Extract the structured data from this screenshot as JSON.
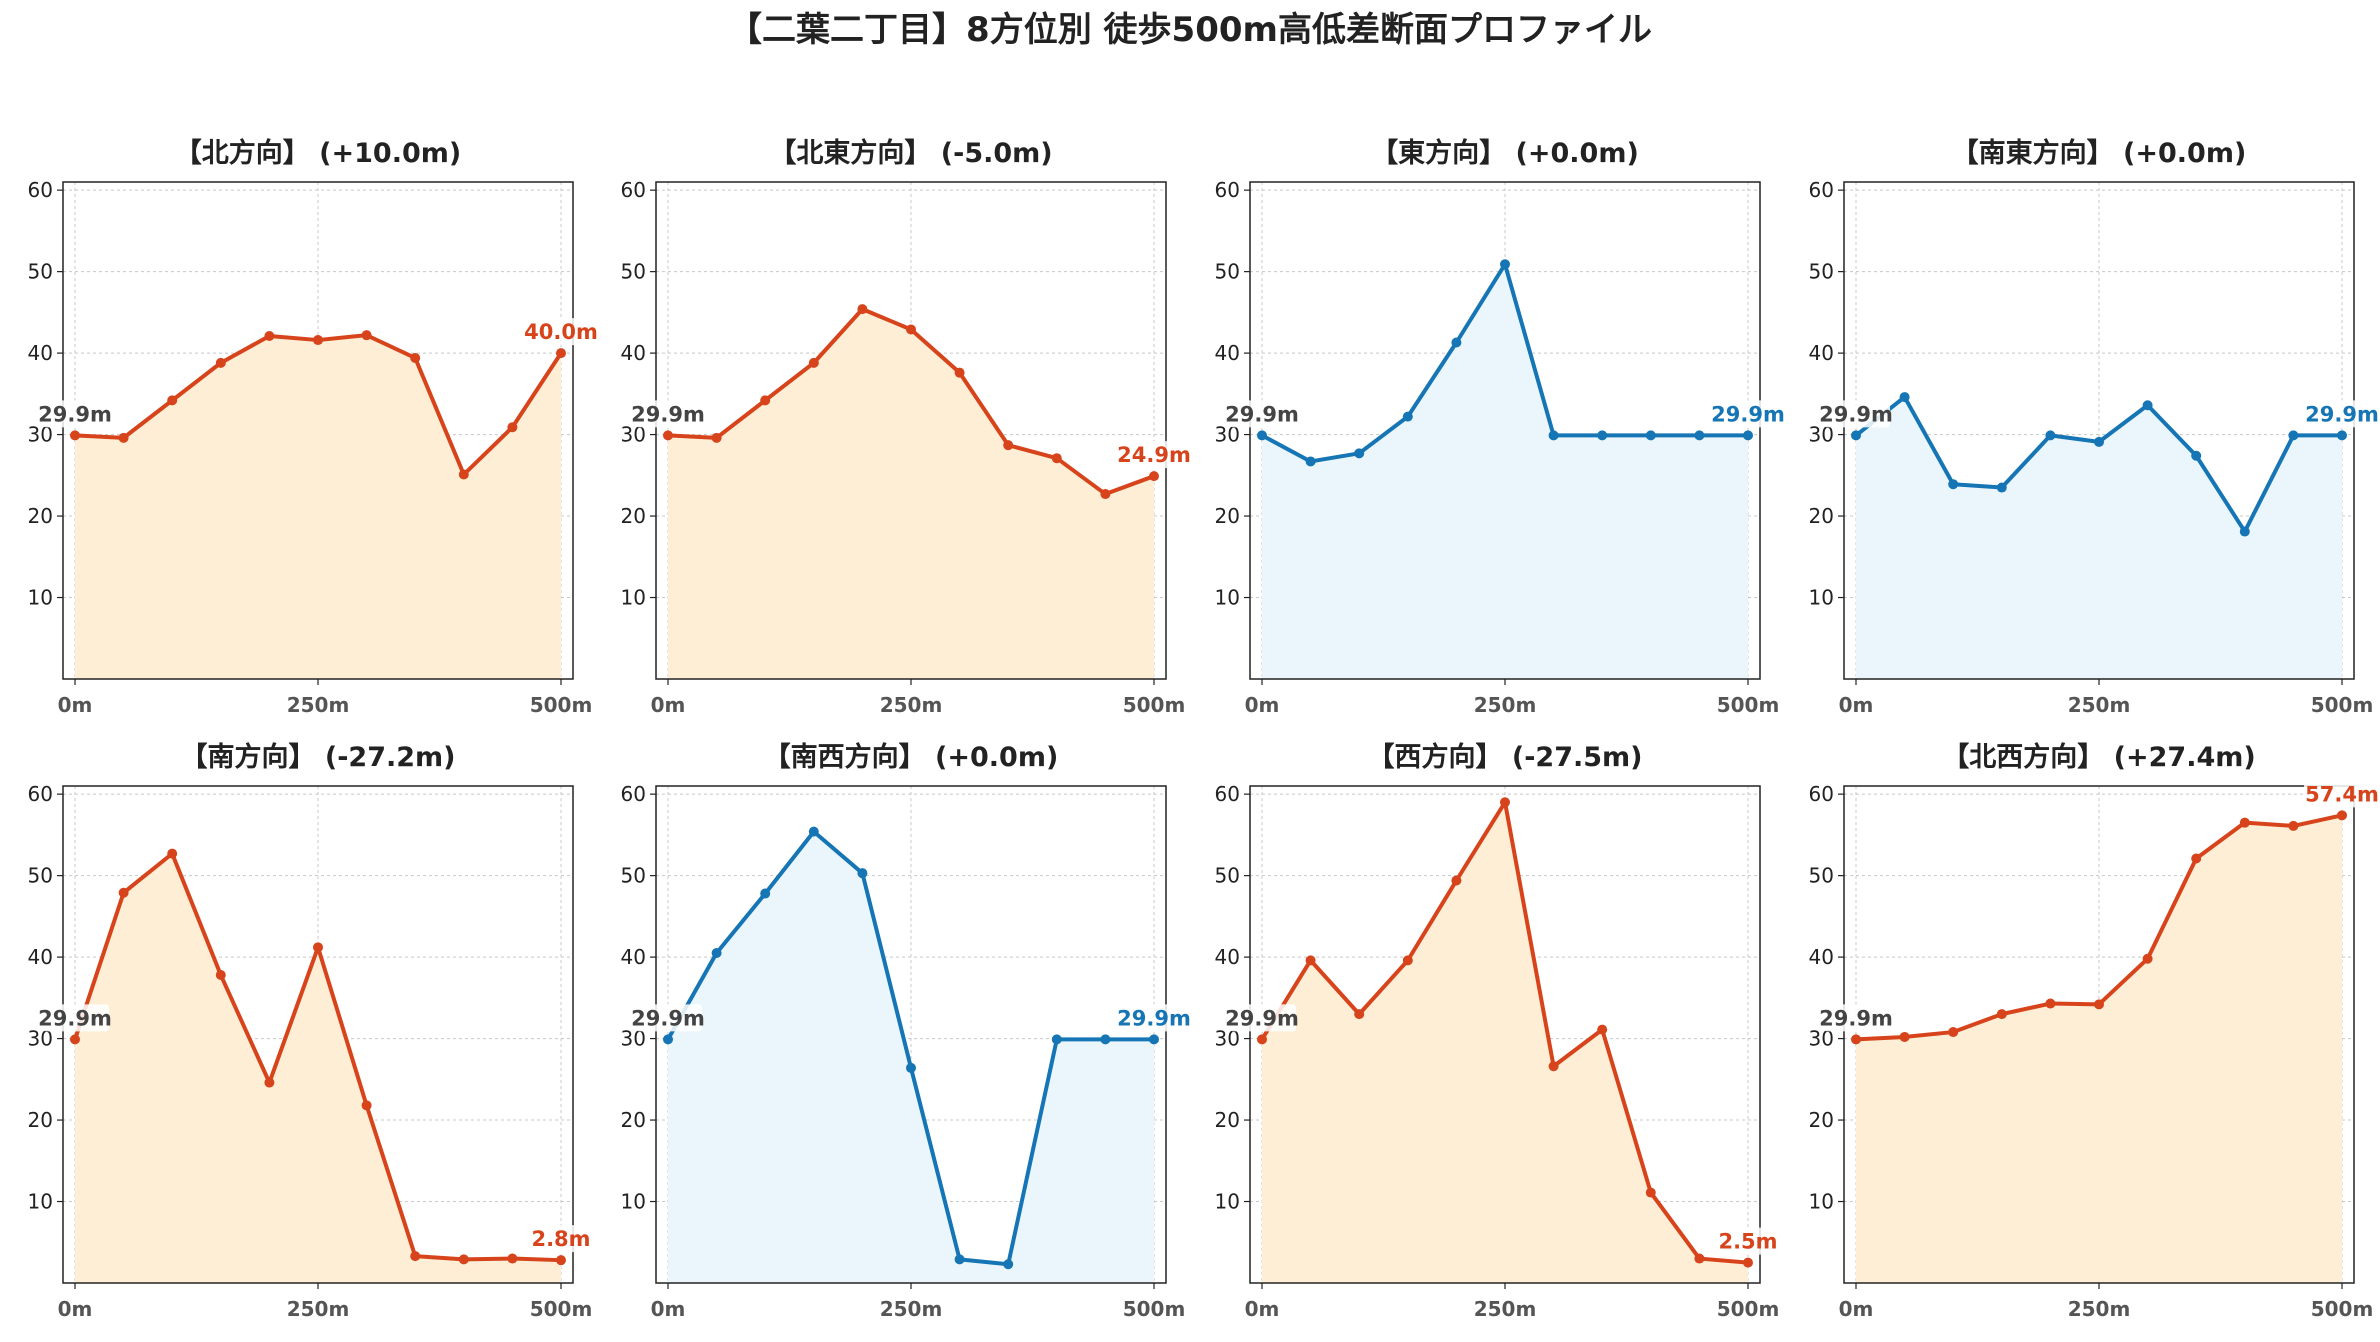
{
  "title": "【二葉二丁目】8方位別 徒歩500m高低差断面プロファイル",
  "colors": {
    "up_line": "#d7441c",
    "up_fill": "#fdeed5",
    "flat_line": "#1575b5",
    "flat_fill": "#eaf6fc",
    "start_label": "#444444"
  },
  "chart_data": [
    {
      "type": "line",
      "title": "【北方向】 (+10.0m)",
      "trend": "up",
      "x": [
        0,
        50,
        100,
        150,
        200,
        250,
        300,
        350,
        400,
        450,
        500
      ],
      "values": [
        29.9,
        29.6,
        34.2,
        38.8,
        42.1,
        41.6,
        42.2,
        39.4,
        25.1,
        30.9,
        40.0
      ],
      "xtick_labels": [
        "0m",
        "250m",
        "500m"
      ],
      "ytick_labels": [
        "10",
        "20",
        "30",
        "40",
        "50",
        "60"
      ],
      "ylim": [
        0,
        61
      ],
      "grid": true,
      "start_label": "29.9m",
      "end_label": "40.0m"
    },
    {
      "type": "line",
      "title": "【北東方向】 (-5.0m)",
      "trend": "up",
      "x": [
        0,
        50,
        100,
        150,
        200,
        250,
        300,
        350,
        400,
        450,
        500
      ],
      "values": [
        29.9,
        29.6,
        34.2,
        38.8,
        45.4,
        42.9,
        37.6,
        28.7,
        27.1,
        22.7,
        24.9
      ],
      "xtick_labels": [
        "0m",
        "250m",
        "500m"
      ],
      "ytick_labels": [
        "10",
        "20",
        "30",
        "40",
        "50",
        "60"
      ],
      "ylim": [
        0,
        61
      ],
      "grid": true,
      "start_label": "29.9m",
      "end_label": "24.9m"
    },
    {
      "type": "line",
      "title": "【東方向】 (+0.0m)",
      "trend": "flat",
      "x": [
        0,
        50,
        100,
        150,
        200,
        250,
        300,
        350,
        400,
        450,
        500
      ],
      "values": [
        29.9,
        26.7,
        27.7,
        32.2,
        41.3,
        50.9,
        29.9,
        29.9,
        29.9,
        29.9,
        29.9
      ],
      "xtick_labels": [
        "0m",
        "250m",
        "500m"
      ],
      "ytick_labels": [
        "10",
        "20",
        "30",
        "40",
        "50",
        "60"
      ],
      "ylim": [
        0,
        61
      ],
      "grid": true,
      "start_label": "29.9m",
      "end_label": "29.9m"
    },
    {
      "type": "line",
      "title": "【南東方向】 (+0.0m)",
      "trend": "flat",
      "x": [
        0,
        50,
        100,
        150,
        200,
        250,
        300,
        350,
        400,
        450,
        500
      ],
      "values": [
        29.9,
        34.6,
        23.9,
        23.5,
        29.9,
        29.1,
        33.6,
        27.4,
        18.1,
        29.9,
        29.9
      ],
      "xtick_labels": [
        "0m",
        "250m",
        "500m"
      ],
      "ytick_labels": [
        "10",
        "20",
        "30",
        "40",
        "50",
        "60"
      ],
      "ylim": [
        0,
        61
      ],
      "grid": true,
      "start_label": "29.9m",
      "end_label": "29.9m"
    },
    {
      "type": "line",
      "title": "【南方向】 (-27.2m)",
      "trend": "up",
      "x": [
        0,
        50,
        100,
        150,
        200,
        250,
        300,
        350,
        400,
        450,
        500
      ],
      "values": [
        29.9,
        47.9,
        52.7,
        37.8,
        24.6,
        41.2,
        21.8,
        3.3,
        2.9,
        3.0,
        2.8
      ],
      "xtick_labels": [
        "0m",
        "250m",
        "500m"
      ],
      "ytick_labels": [
        "10",
        "20",
        "30",
        "40",
        "50",
        "60"
      ],
      "ylim": [
        0,
        61
      ],
      "grid": true,
      "start_label": "29.9m",
      "end_label": "2.8m"
    },
    {
      "type": "line",
      "title": "【南西方向】 (+0.0m)",
      "trend": "flat",
      "x": [
        0,
        50,
        100,
        150,
        200,
        250,
        300,
        350,
        400,
        450,
        500
      ],
      "values": [
        29.9,
        40.5,
        47.8,
        55.4,
        50.3,
        26.4,
        2.9,
        2.3,
        29.9,
        29.9,
        29.9
      ],
      "xtick_labels": [
        "0m",
        "250m",
        "500m"
      ],
      "ytick_labels": [
        "10",
        "20",
        "30",
        "40",
        "50",
        "60"
      ],
      "ylim": [
        0,
        61
      ],
      "grid": true,
      "start_label": "29.9m",
      "end_label": "29.9m"
    },
    {
      "type": "line",
      "title": "【西方向】 (-27.5m)",
      "trend": "up",
      "x": [
        0,
        50,
        100,
        150,
        200,
        250,
        300,
        350,
        400,
        450,
        500
      ],
      "values": [
        29.9,
        39.6,
        33.0,
        39.6,
        49.4,
        59.0,
        26.6,
        31.1,
        11.1,
        3.0,
        2.5
      ],
      "xtick_labels": [
        "0m",
        "250m",
        "500m"
      ],
      "ytick_labels": [
        "10",
        "20",
        "30",
        "40",
        "50",
        "60"
      ],
      "ylim": [
        0,
        61
      ],
      "grid": true,
      "start_label": "29.9m",
      "end_label": "2.5m"
    },
    {
      "type": "line",
      "title": "【北西方向】 (+27.4m)",
      "trend": "up",
      "x": [
        0,
        50,
        100,
        150,
        200,
        250,
        300,
        350,
        400,
        450,
        500
      ],
      "values": [
        29.9,
        30.2,
        30.8,
        33.0,
        34.3,
        34.2,
        39.8,
        52.1,
        56.5,
        56.1,
        57.4
      ],
      "xtick_labels": [
        "0m",
        "250m",
        "500m"
      ],
      "ytick_labels": [
        "10",
        "20",
        "30",
        "40",
        "50",
        "60"
      ],
      "ylim": [
        0,
        61
      ],
      "grid": true,
      "start_label": "29.9m",
      "end_label": "57.4m"
    }
  ]
}
